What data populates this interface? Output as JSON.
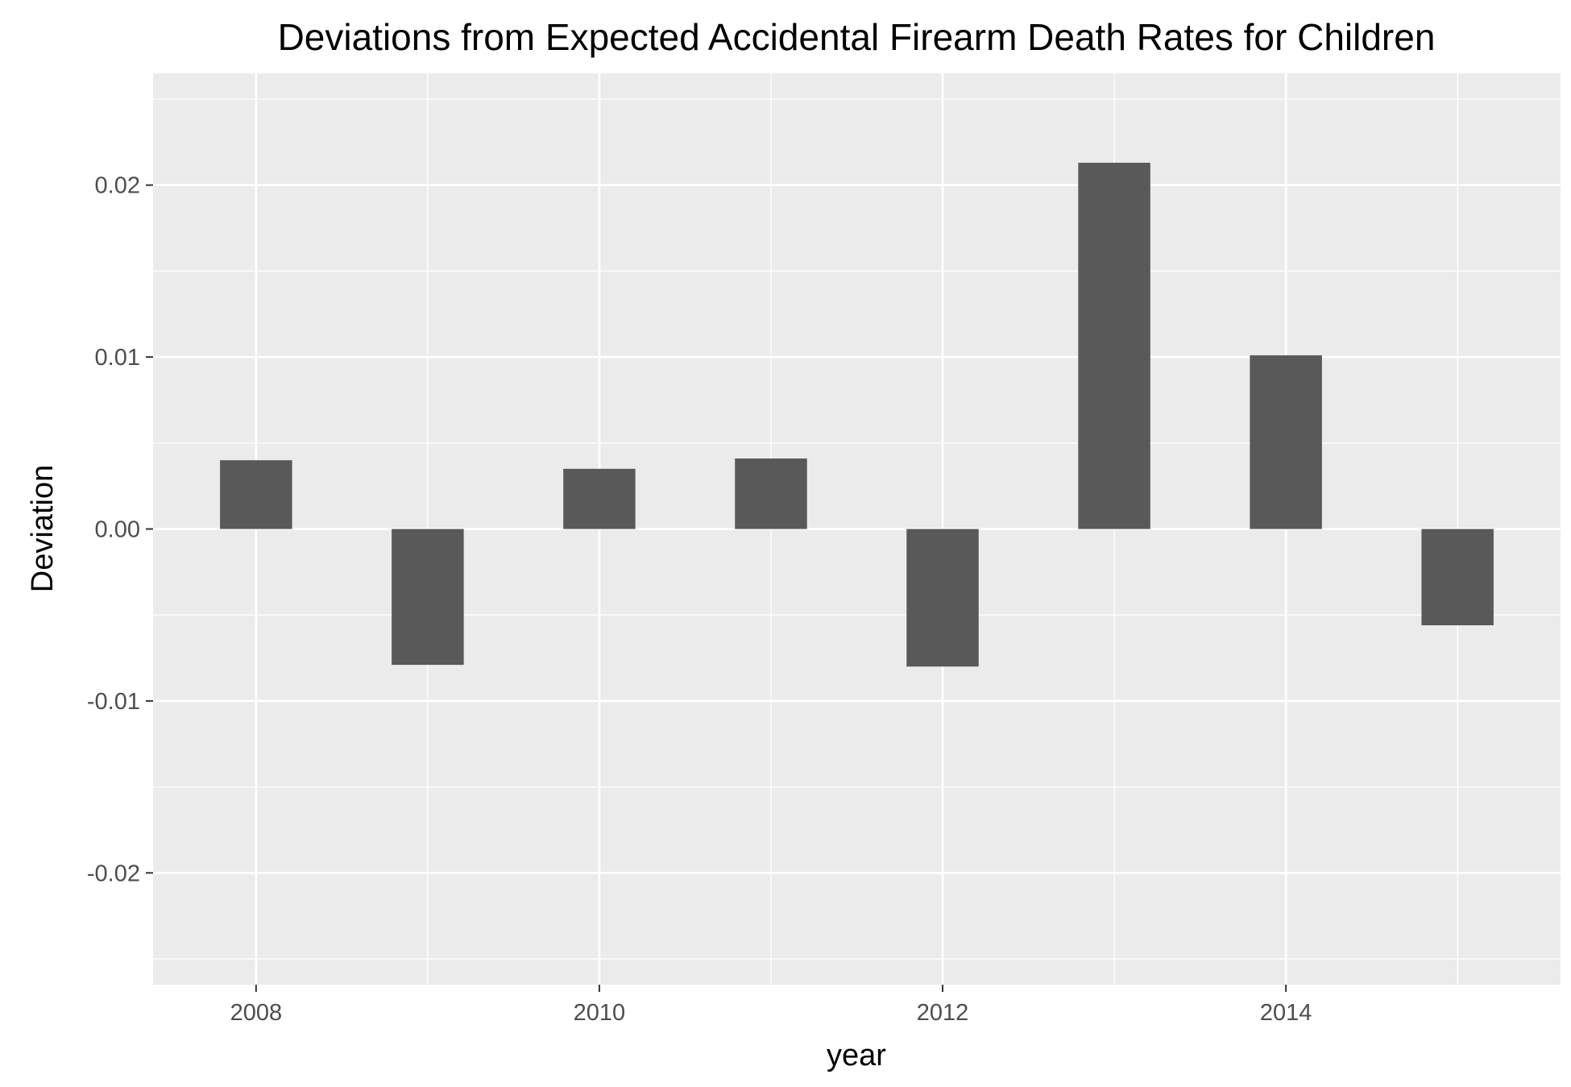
{
  "chart_data": {
    "type": "bar",
    "title": "Deviations from Expected Accidental Firearm Death Rates for Children",
    "xlabel": "year",
    "ylabel": "Deviation",
    "x": [
      2008,
      2009,
      2010,
      2011,
      2012,
      2013,
      2014,
      2015
    ],
    "values": [
      0.004,
      -0.0079,
      0.0035,
      0.0041,
      -0.008,
      0.0213,
      0.0101,
      -0.0056
    ],
    "xlim": [
      2007.4,
      2015.6
    ],
    "ylim": [
      -0.0265,
      0.0265
    ],
    "xticks": [
      2008,
      2010,
      2012,
      2014
    ],
    "xtick_labels": [
      "2008",
      "2010",
      "2012",
      "2014"
    ],
    "yticks": [
      0.02,
      0.01,
      0.0,
      -0.01,
      -0.02
    ],
    "ytick_labels": [
      "0.02",
      "0.01",
      "0.00",
      "-0.01",
      "-0.02"
    ],
    "grid": true,
    "legend": "none",
    "colors": {
      "bar": "#595959",
      "panel_background": "#ebebeb",
      "grid_line": "#ffffff",
      "tick_text": "#4d4d4d",
      "title_text": "#000000"
    }
  }
}
